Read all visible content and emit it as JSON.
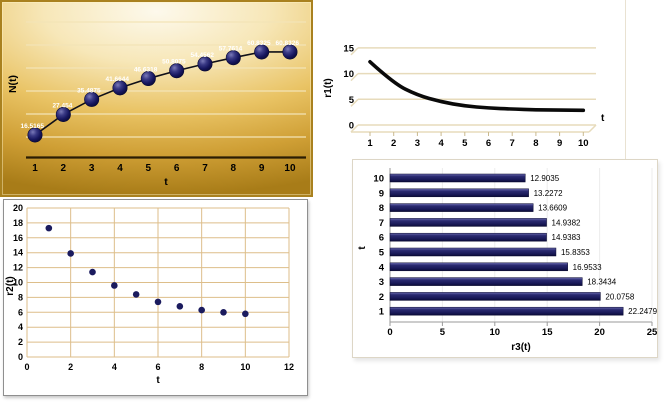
{
  "colors": {
    "navy": "#1b1b5e",
    "navy_dark": "#0a0a38",
    "navy_light": "#6a6ab0",
    "black_line": "#0a0a0a",
    "gold_grid": "#f3e4b6",
    "gold_axis": "#2b1d03",
    "beige_grid": "#e7dbbb",
    "tan_grid": "#ddbe8a",
    "bar_grid": "#ececec",
    "bar_axis": "#9a9a9a",
    "label_text": "#000000",
    "point_label_text": "#ffffff"
  },
  "chart_data": [
    {
      "id": "n_chart",
      "type": "line",
      "style": "gold-3d-sphere-markers",
      "title": "",
      "xlabel": "t",
      "ylabel": "N(t)",
      "x": [
        1,
        2,
        3,
        4,
        5,
        6,
        7,
        8,
        9,
        10
      ],
      "values": [
        16.5165,
        27.454,
        35.4875,
        41.6644,
        46.6318,
        50.8075,
        54.4562,
        57.7614,
        60.8325,
        60.8326
      ],
      "data_labels": [
        "16.5165",
        "27.454",
        "35.4875",
        "41.6644",
        "46.6318",
        "50.8075",
        "54.4562",
        "57.7614",
        "60.8325",
        "60.8326"
      ],
      "xticks": [
        "1",
        "2",
        "3",
        "4",
        "5",
        "6",
        "7",
        "8",
        "9",
        "10"
      ],
      "grid": true,
      "legend": false
    },
    {
      "id": "r1_chart",
      "type": "line",
      "style": "thick-black-curve",
      "title": "",
      "xlabel": "t",
      "ylabel": "r1(t)",
      "x": [
        1,
        2,
        3,
        4,
        5,
        6,
        7,
        8,
        9,
        10
      ],
      "values": [
        12.3,
        8.1,
        5.8,
        4.5,
        3.7,
        3.3,
        3.1,
        2.95,
        2.9,
        2.85
      ],
      "xticks": [
        "1",
        "2",
        "3",
        "4",
        "5",
        "6",
        "7",
        "8",
        "9",
        "10"
      ],
      "yticks": [
        "0",
        "5",
        "10",
        "15"
      ],
      "ytick_values": [
        0,
        5,
        10,
        15
      ],
      "ylim": [
        0,
        15
      ],
      "grid": true,
      "legend": false
    },
    {
      "id": "r2_chart",
      "type": "scatter",
      "title": "",
      "xlabel": "t",
      "ylabel": "r2(t)",
      "x": [
        1,
        2,
        3,
        4,
        5,
        6,
        7,
        8,
        9,
        10
      ],
      "values": [
        17.3,
        13.9,
        11.4,
        9.6,
        8.4,
        7.4,
        6.8,
        6.3,
        6.0,
        5.8
      ],
      "xticks": [
        "0",
        "2",
        "4",
        "6",
        "8",
        "10",
        "12"
      ],
      "xtick_values": [
        0,
        2,
        4,
        6,
        8,
        10,
        12
      ],
      "yticks": [
        "0",
        "2",
        "4",
        "6",
        "8",
        "10",
        "12",
        "14",
        "16",
        "18",
        "20"
      ],
      "ytick_values": [
        0,
        2,
        4,
        6,
        8,
        10,
        12,
        14,
        16,
        18,
        20
      ],
      "xlim": [
        0,
        12
      ],
      "ylim": [
        0,
        20
      ],
      "grid": true,
      "legend": false
    },
    {
      "id": "r3_chart",
      "type": "bar",
      "orientation": "horizontal",
      "title": "",
      "xlabel": "r3(t)",
      "ylabel": "t",
      "categories": [
        "10",
        "9",
        "8",
        "7",
        "6",
        "5",
        "4",
        "3",
        "2",
        "1"
      ],
      "values": [
        12.9035,
        13.2272,
        13.6609,
        14.9382,
        14.9383,
        15.8353,
        16.9533,
        18.3434,
        20.0758,
        22.2479
      ],
      "data_labels": [
        "12.9035",
        "13.2272",
        "13.6609",
        "14.9382",
        "14.9383",
        "15.8353",
        "16.9533",
        "18.3434",
        "20.0758",
        "22.2479"
      ],
      "xticks": [
        "0",
        "5",
        "10",
        "15",
        "20",
        "25"
      ],
      "xtick_values": [
        0,
        5,
        10,
        15,
        20,
        25
      ],
      "xlim": [
        0,
        25
      ],
      "grid": true,
      "legend": false
    }
  ]
}
